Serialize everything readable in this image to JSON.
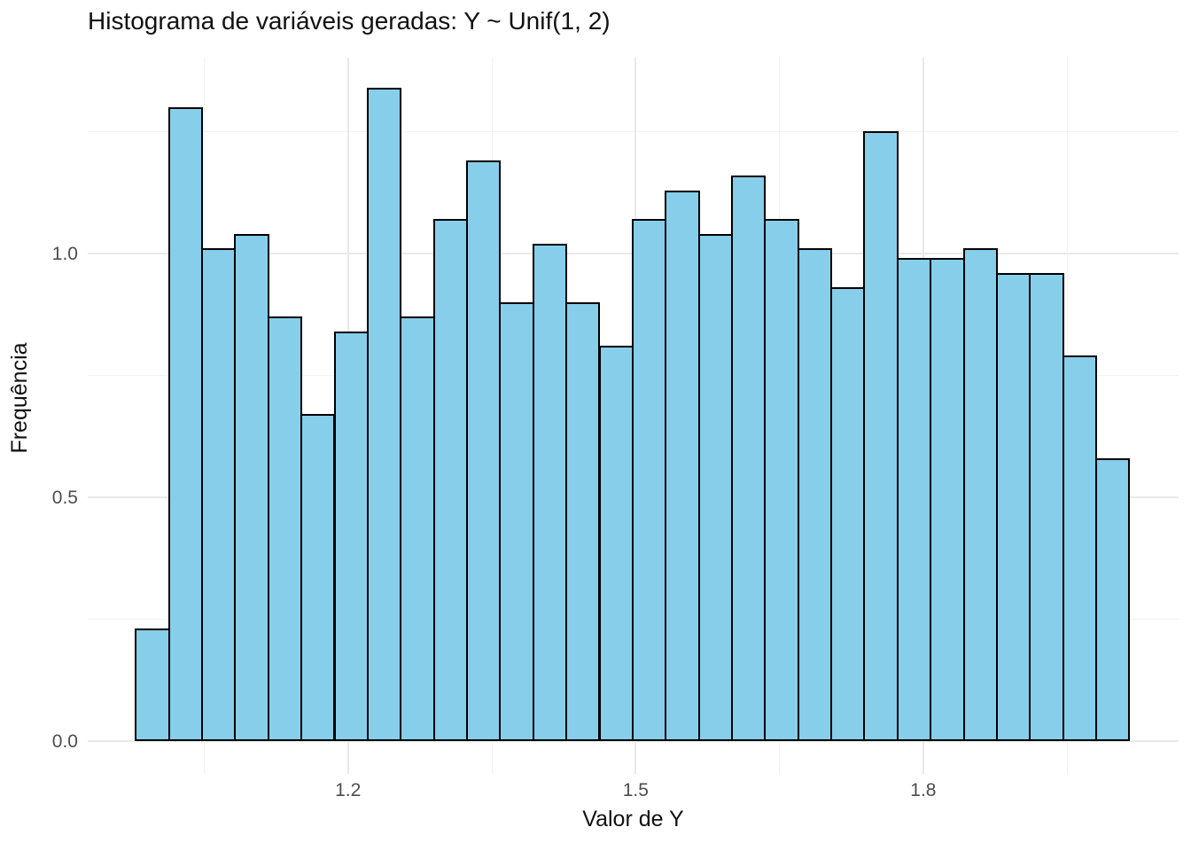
{
  "chart": {
    "title": "Histograma de variáveis geradas: Y ~ Unif(1, 2)",
    "xlabel": "Valor de Y",
    "ylabel": "Frequência"
  },
  "chart_data": {
    "type": "bar",
    "subtype": "histogram",
    "title": "Histograma de variáveis geradas: Y ~ Unif(1, 2)",
    "xlabel": "Valor de Y",
    "ylabel": "Frequência",
    "bin_start": 0.979,
    "bin_width": 0.0345,
    "values": [
      0.23,
      1.3,
      1.01,
      1.04,
      0.87,
      0.67,
      0.84,
      1.34,
      0.87,
      1.07,
      1.19,
      0.9,
      1.02,
      0.9,
      0.81,
      1.07,
      1.13,
      1.04,
      1.16,
      1.07,
      1.01,
      0.93,
      1.25,
      0.99,
      0.99,
      1.01,
      0.96,
      0.96,
      0.79,
      0.58
    ],
    "x_ticks": [
      {
        "label": "1.2",
        "value": 1.2
      },
      {
        "label": "1.5",
        "value": 1.5
      },
      {
        "label": "1.8",
        "value": 1.8
      }
    ],
    "x_minor_ticks": [
      1.05,
      1.35,
      1.65,
      1.95
    ],
    "y_ticks": [
      {
        "label": "0.0",
        "value": 0.0
      },
      {
        "label": "0.5",
        "value": 0.5
      },
      {
        "label": "1.0",
        "value": 1.0
      }
    ],
    "y_minor_ticks": [
      0.25,
      0.75,
      1.25
    ],
    "xlim": [
      0.927,
      2.066
    ],
    "ylim": [
      -0.067,
      1.402
    ],
    "grid": true,
    "legend": false,
    "bar_fill": "#87CEEB",
    "bar_stroke": "#000000"
  },
  "colors": {
    "background": "#ffffff",
    "major_grid": "#e9e9e9",
    "minor_grid": "#f2f2f2",
    "tick_label": "#4d4d4d",
    "text": "#111111"
  }
}
